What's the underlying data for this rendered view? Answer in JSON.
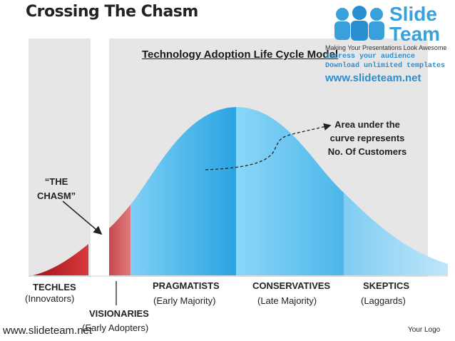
{
  "title": "Crossing The Chasm",
  "subtitle": "Technology Adoption Life Cycle Model",
  "logo": {
    "brand_line1": "Slide",
    "brand_line2": "Team",
    "tagline": "Making Your Presentations Look Awesome",
    "promo1": "Impress your audience",
    "promo2": "Download unlimited templates",
    "url": "www.slideteam.net"
  },
  "annotation": [
    "Area under the",
    "curve represents",
    "No. Of Customers"
  ],
  "chasm_label": [
    "“THE",
    "CHASM”"
  ],
  "segments": [
    {
      "name": "TECHLES",
      "sub": "(Innovators)"
    },
    {
      "name": "VISIONARIES",
      "sub": "(Early Adopters)"
    },
    {
      "name": "PRAGMATISTS",
      "sub": "(Early Majority)"
    },
    {
      "name": "CONSERVATIVES",
      "sub": "(Late Majority)"
    },
    {
      "name": "SKEPTICS",
      "sub": "(Laggards)"
    }
  ],
  "footer": {
    "url": "www.slideteam.net",
    "logo_placeholder": "Your Logo"
  },
  "colors": {
    "red": "#c0282c",
    "blue_dark": "#2aa6e4",
    "blue_light": "#8ad0f3",
    "panel": "#e6e6e6"
  }
}
